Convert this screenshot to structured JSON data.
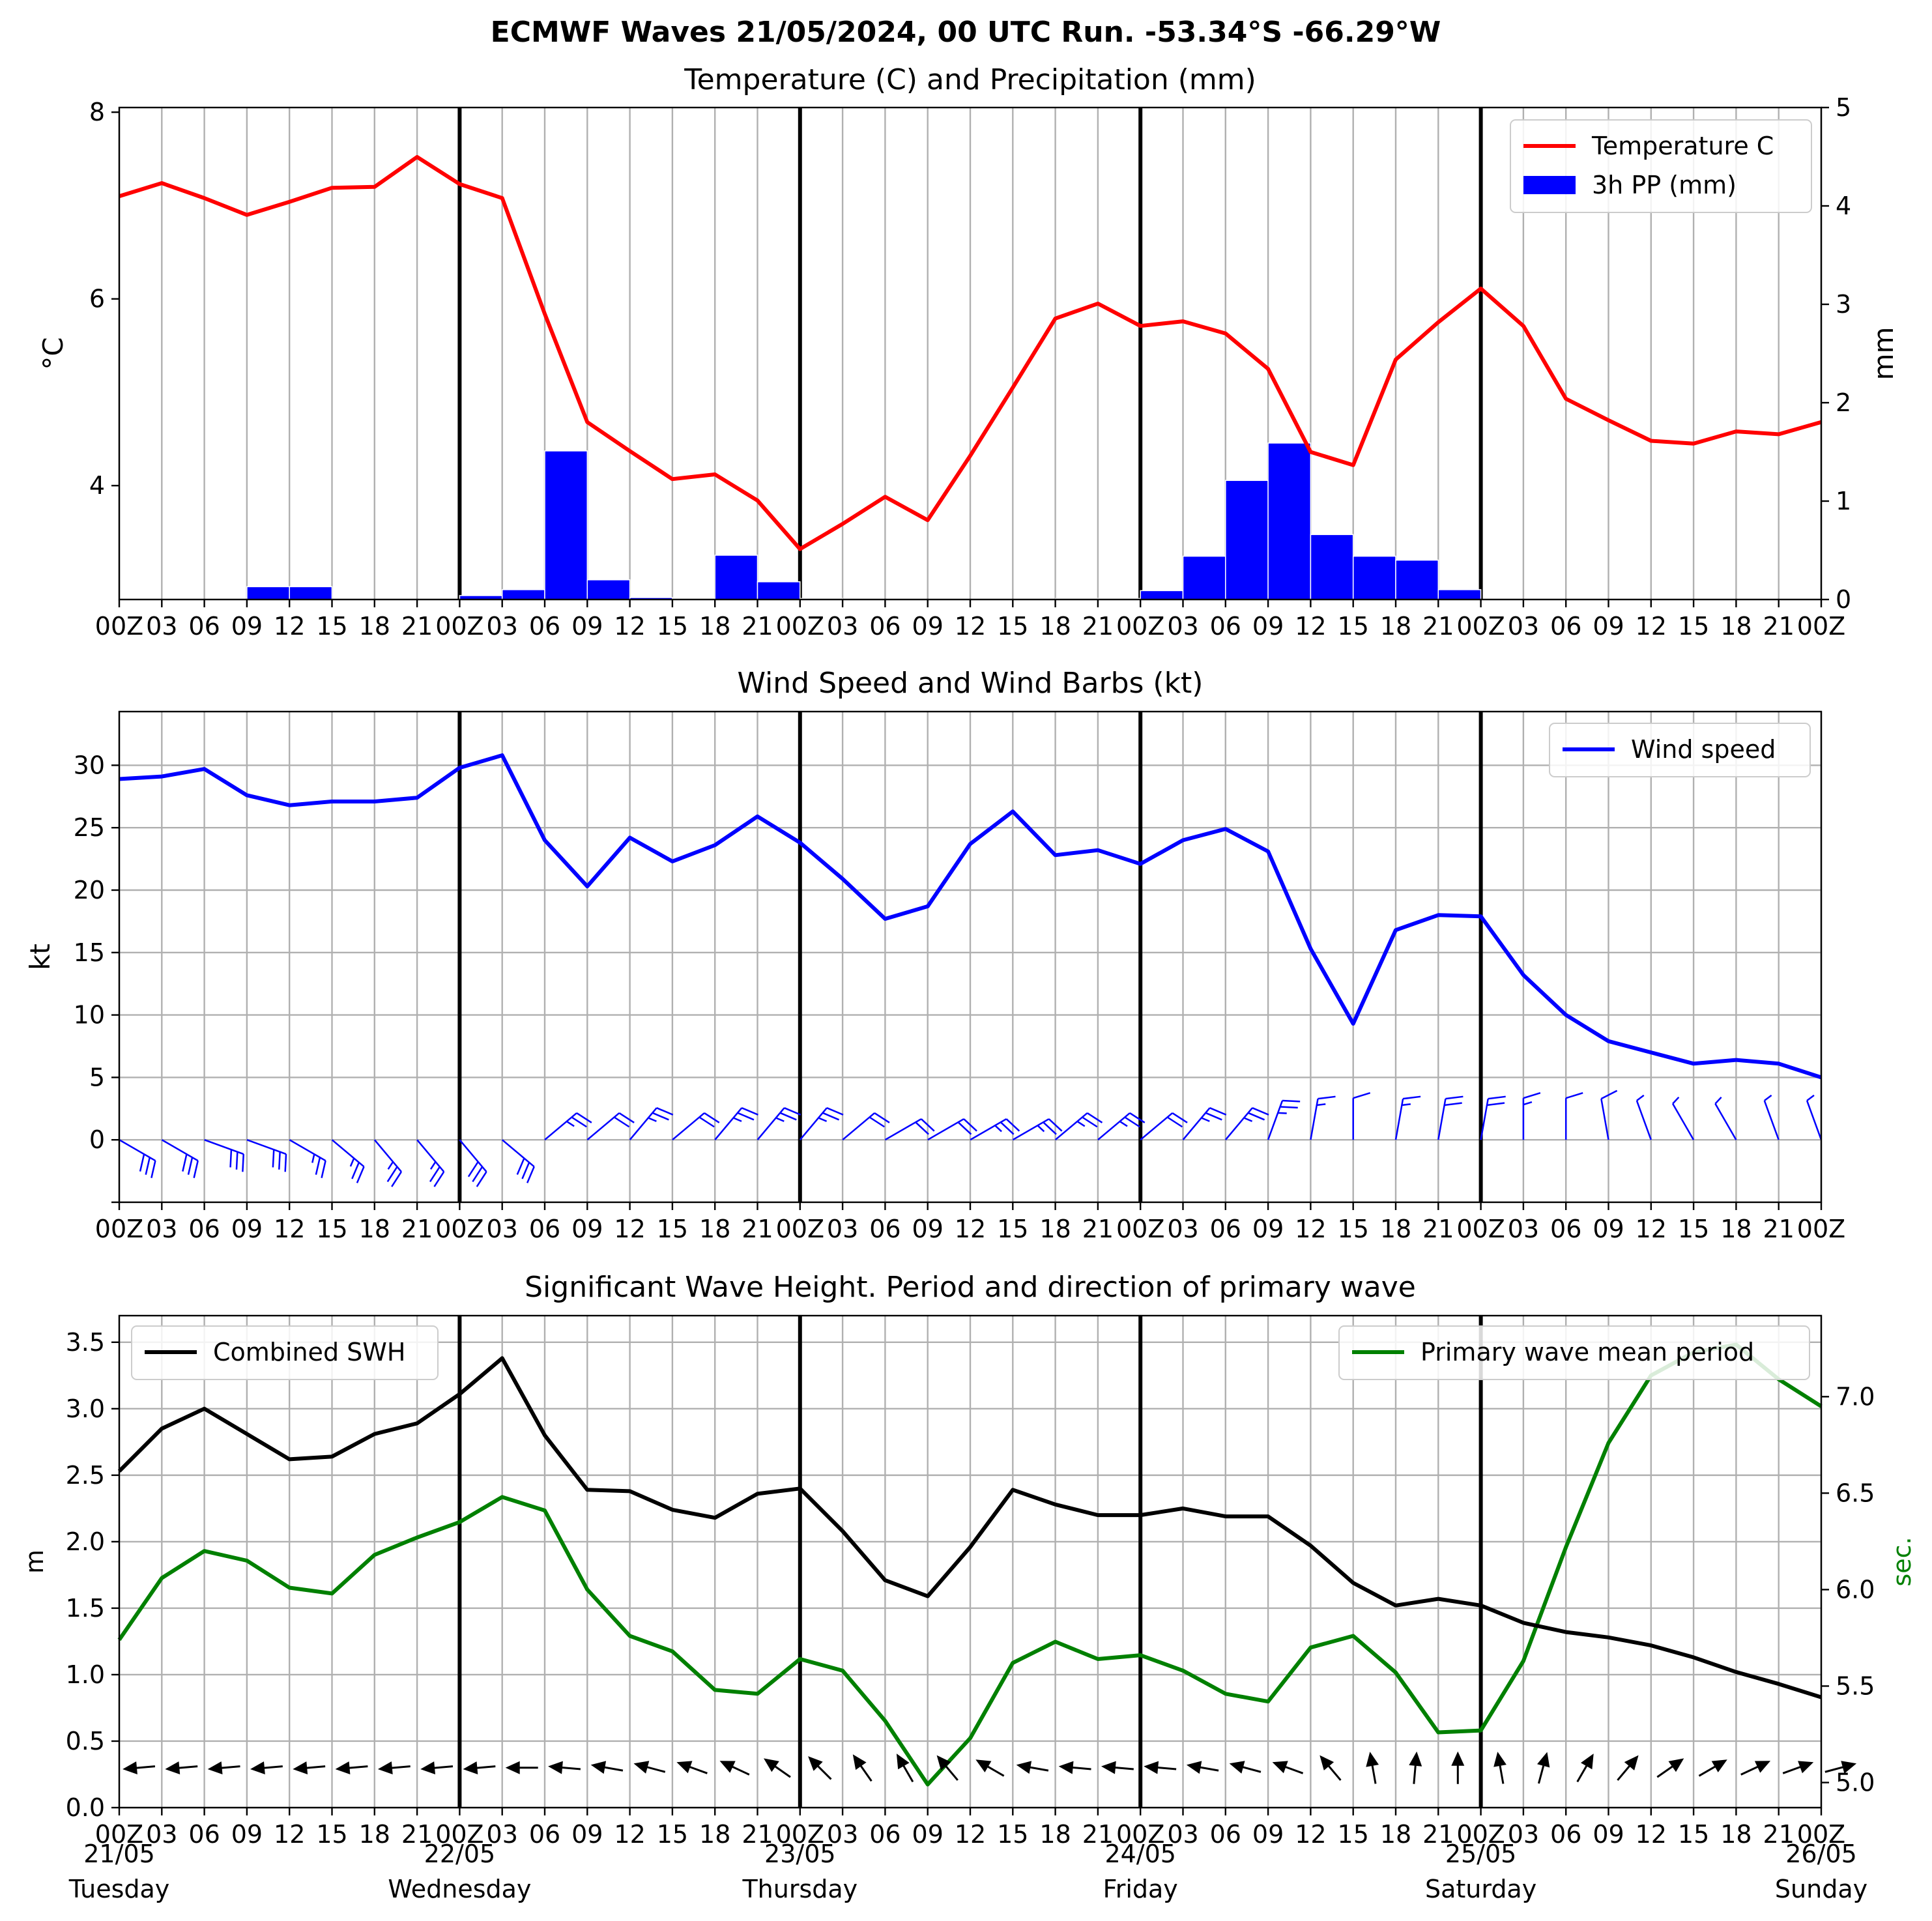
{
  "title": "ECMWF Waves 21/05/2024, 00 UTC Run. -53.34°S -66.29°W",
  "colors": {
    "temperature": "#ff0000",
    "precip": "#0000ff",
    "wind": "#0000ff",
    "swh": "#000000",
    "period": "#008000"
  },
  "hour_labels": [
    "00Z",
    "03",
    "06",
    "09",
    "12",
    "15",
    "18",
    "21",
    "00Z",
    "03",
    "06",
    "09",
    "12",
    "15",
    "18",
    "21",
    "00Z",
    "03",
    "06",
    "09",
    "12",
    "15",
    "18",
    "21",
    "00Z",
    "03",
    "06",
    "09",
    "12",
    "15",
    "18",
    "21",
    "00Z",
    "03",
    "06",
    "09",
    "12",
    "15",
    "18",
    "21",
    "00Z"
  ],
  "day_labels": [
    {
      "date": "21/05",
      "day": "Tuesday"
    },
    {
      "date": "22/05",
      "day": "Wednesday"
    },
    {
      "date": "23/05",
      "day": "Thursday"
    },
    {
      "date": "24/05",
      "day": "Friday"
    },
    {
      "date": "25/05",
      "day": "Saturday"
    },
    {
      "date": "26/05",
      "day": "Sunday"
    }
  ],
  "chart_data": [
    {
      "type": "line",
      "title": "Temperature (C) and Precipitation (mm)",
      "ylabel": "°C",
      "y2label": "mm",
      "ylim": [
        2.78,
        8.05
      ],
      "y2lim": [
        0,
        5
      ],
      "yticks": [
        4,
        6,
        8
      ],
      "y2ticks": [
        0,
        1,
        2,
        3,
        4,
        5
      ],
      "legend_position": "top-right",
      "series": [
        {
          "name": "Temperature C",
          "type": "line",
          "values": [
            7.1,
            7.24,
            7.08,
            6.9,
            7.04,
            7.19,
            7.2,
            7.52,
            7.23,
            7.08,
            5.84,
            4.68,
            4.37,
            4.07,
            4.12,
            3.84,
            3.32,
            3.59,
            3.88,
            3.63,
            4.32,
            5.05,
            5.79,
            5.95,
            5.71,
            5.76,
            5.63,
            5.25,
            4.36,
            4.22,
            5.35,
            5.75,
            6.11,
            5.71,
            4.93,
            4.7,
            4.48,
            4.45,
            4.58,
            4.55,
            4.68
          ]
        },
        {
          "name": "3h PP (mm)",
          "type": "bar",
          "values": [
            0,
            0,
            0,
            0.13,
            0.13,
            0,
            0,
            0,
            0.04,
            0.1,
            1.51,
            0.2,
            0.02,
            0.01,
            0.45,
            0.18,
            0.01,
            0,
            0,
            0,
            0,
            0,
            0.01,
            0.01,
            0.09,
            0.44,
            1.21,
            1.59,
            0.66,
            0.44,
            0.4,
            0.1,
            0,
            0,
            0,
            0,
            0,
            0,
            0,
            0
          ]
        }
      ]
    },
    {
      "type": "line",
      "title": "Wind Speed and Wind Barbs (kt)",
      "ylabel": "kt",
      "ylim": [
        -5,
        34.3
      ],
      "yticks": [
        0,
        5,
        10,
        15,
        20,
        25,
        30
      ],
      "legend_position": "top-right",
      "series": [
        {
          "name": "Wind speed",
          "values": [
            28.9,
            29.1,
            29.7,
            27.6,
            26.8,
            27.1,
            27.1,
            27.4,
            29.8,
            30.8,
            24,
            20.3,
            24.2,
            22.3,
            23.6,
            25.9,
            23.8,
            20.9,
            17.7,
            18.7,
            23.7,
            26.3,
            22.8,
            23.2,
            22.1,
            24,
            24.9,
            23.1,
            15.3,
            9.3,
            16.8,
            18,
            17.9,
            13.2,
            10,
            7.9,
            7,
            6.1,
            6.4,
            6.1,
            5
          ]
        }
      ],
      "barb_directions_deg": [
        300,
        300,
        290,
        290,
        300,
        310,
        320,
        320,
        320,
        310,
        230,
        230,
        220,
        230,
        220,
        220,
        220,
        230,
        240,
        240,
        240,
        240,
        230,
        230,
        230,
        220,
        220,
        200,
        190,
        180,
        190,
        190,
        190,
        180,
        180,
        170,
        160,
        150,
        150,
        160,
        160
      ]
    },
    {
      "type": "line",
      "title": "Significant Wave Height. Period and direction of primary wave",
      "ylabel": "m",
      "y2label": "sec.",
      "ylim": [
        0,
        3.7
      ],
      "y2lim": [
        4.87,
        7.42
      ],
      "yticks": [
        0.0,
        0.5,
        1.0,
        1.5,
        2.0,
        2.5,
        3.0,
        3.5
      ],
      "y2ticks": [
        5.0,
        5.5,
        6.0,
        6.5,
        7.0
      ],
      "series": [
        {
          "name": "Combined SWH",
          "axis": "left",
          "legend_position": "top-left",
          "values": [
            2.53,
            2.85,
            3,
            2.81,
            2.62,
            2.64,
            2.81,
            2.89,
            3.11,
            3.38,
            2.8,
            2.39,
            2.38,
            2.24,
            2.18,
            2.36,
            2.4,
            2.08,
            1.71,
            1.59,
            1.96,
            2.39,
            2.28,
            2.2,
            2.2,
            2.25,
            2.19,
            2.19,
            1.97,
            1.69,
            1.52,
            1.57,
            1.52,
            1.39,
            1.32,
            1.28,
            1.22,
            1.13,
            1.02,
            0.93,
            0.83
          ]
        },
        {
          "name": "Primary wave mean period",
          "axis": "right",
          "legend_position": "top-right",
          "values": [
            5.74,
            6.06,
            6.2,
            6.15,
            6.01,
            5.98,
            6.18,
            6.27,
            6.35,
            6.48,
            6.41,
            6,
            5.76,
            5.68,
            5.48,
            5.46,
            5.64,
            5.58,
            5.32,
            4.99,
            5.23,
            5.62,
            5.73,
            5.64,
            5.66,
            5.58,
            5.46,
            5.42,
            5.7,
            5.76,
            5.57,
            5.26,
            5.27,
            5.63,
            6.22,
            6.76,
            7.11,
            7.23,
            7.27,
            7.09,
            6.95
          ]
        }
      ],
      "arrow_directions_deg": [
        265,
        265,
        265,
        265,
        265,
        265,
        265,
        265,
        265,
        270,
        275,
        280,
        285,
        290,
        295,
        305,
        315,
        325,
        330,
        320,
        300,
        280,
        275,
        275,
        275,
        280,
        285,
        290,
        320,
        350,
        5,
        0,
        350,
        15,
        30,
        40,
        55,
        60,
        65,
        70,
        75
      ]
    }
  ]
}
